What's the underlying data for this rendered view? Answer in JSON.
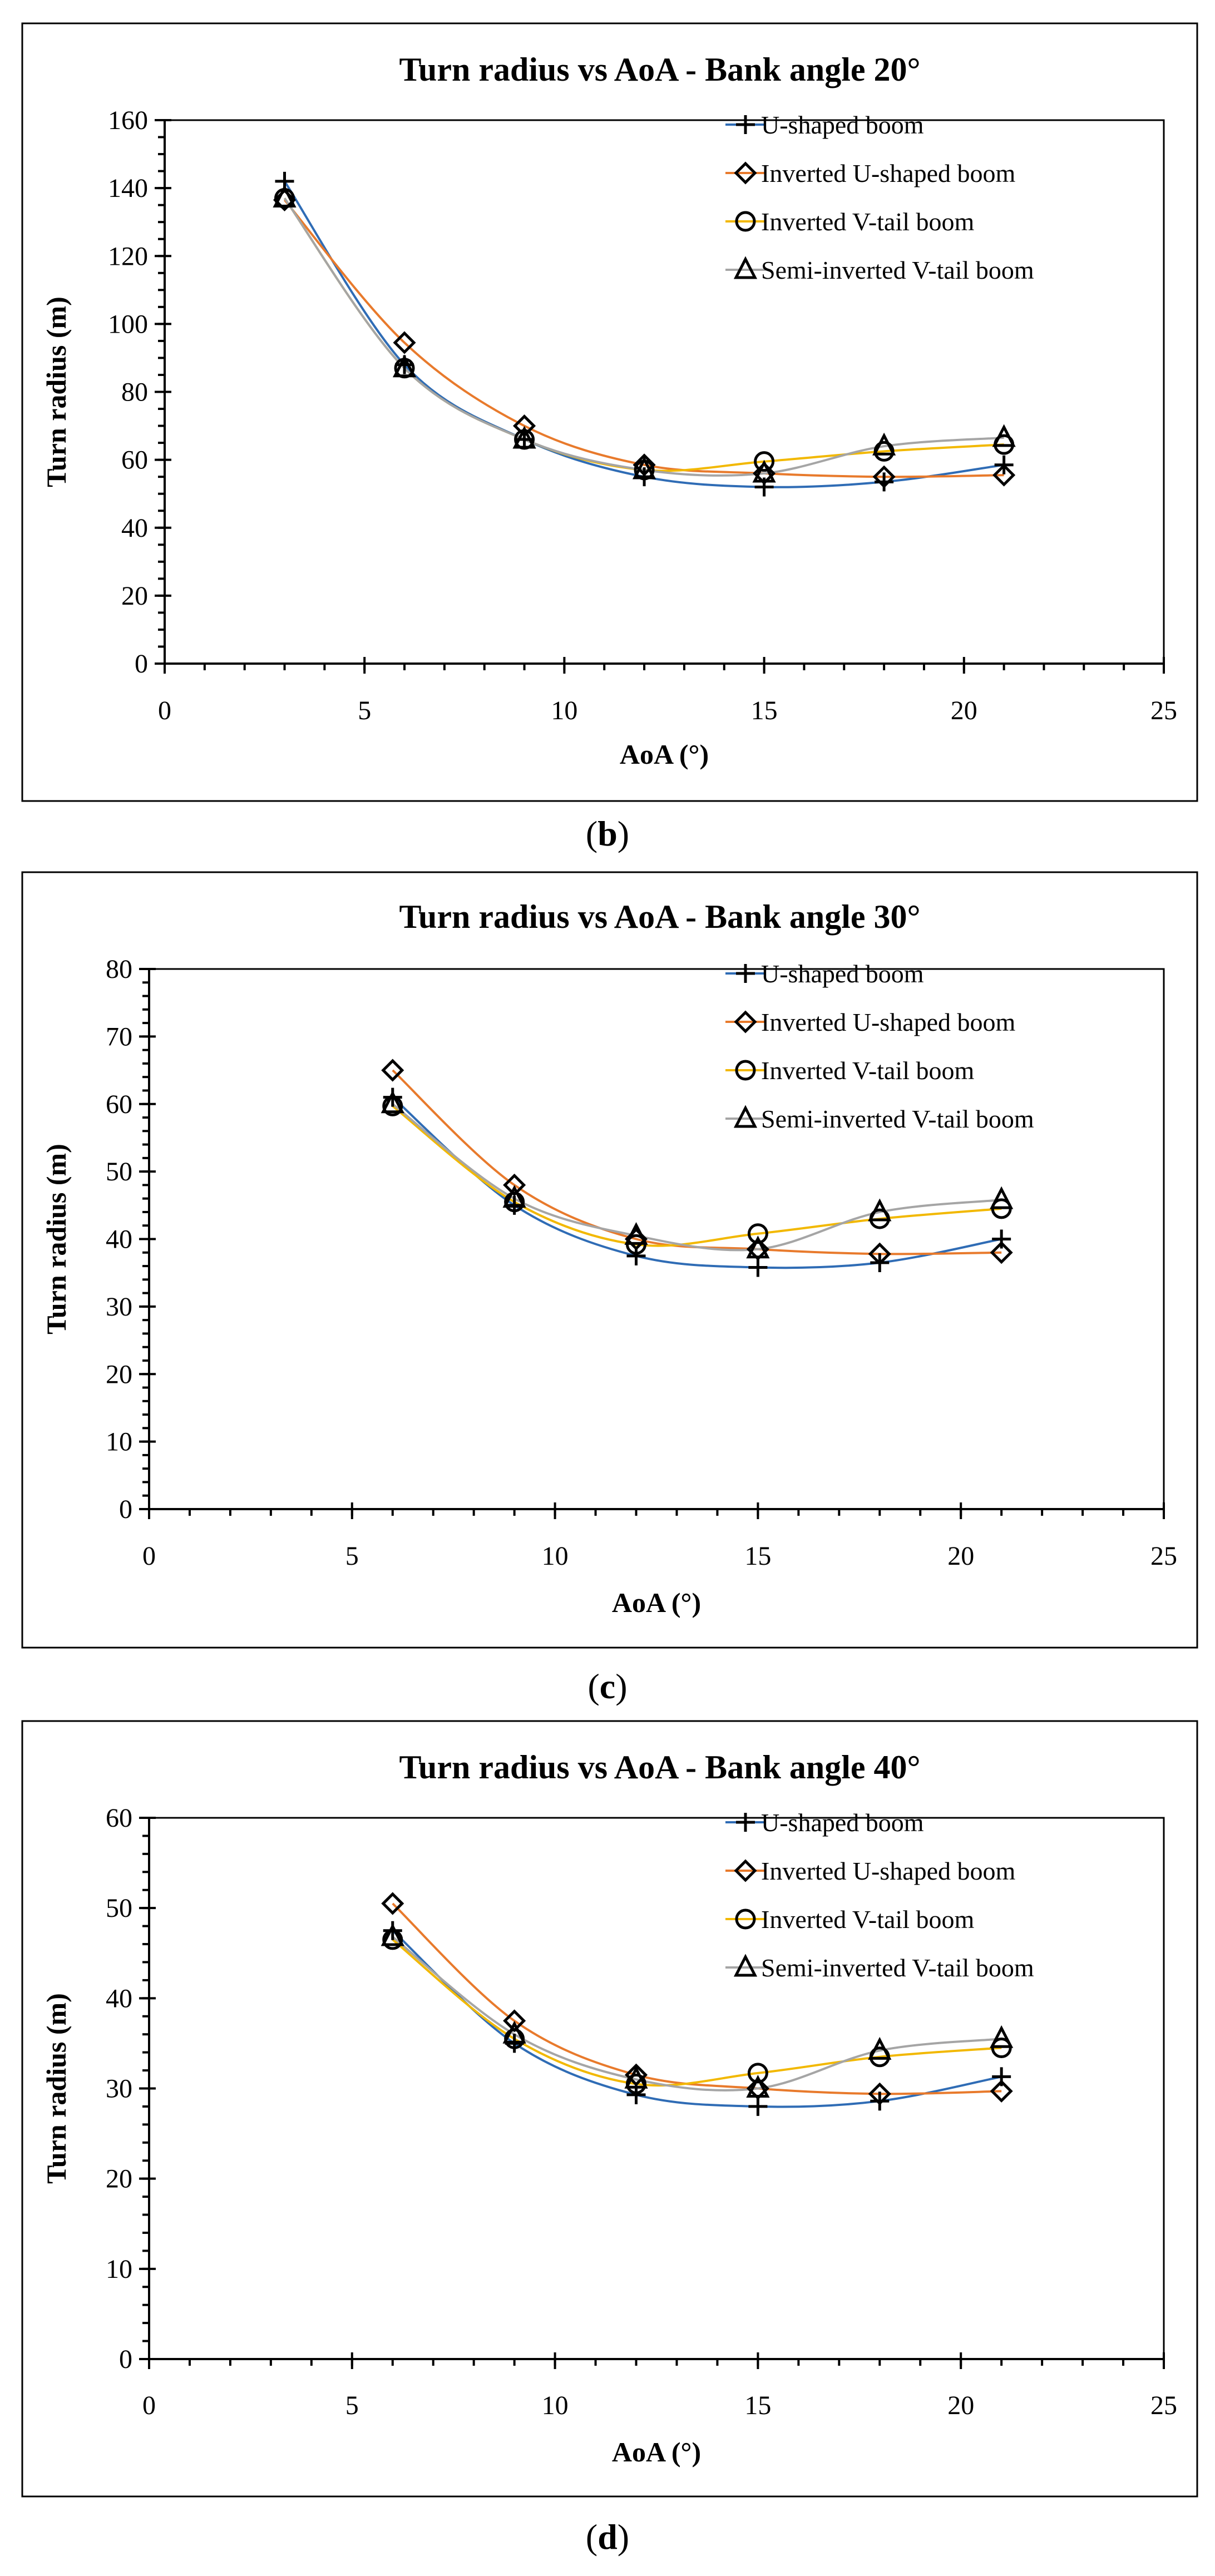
{
  "chart_data": [
    {
      "type": "line",
      "panel_label": "b",
      "title": "Turn radius vs AoA - Bank angle 20°",
      "xlabel": "AoA (°)",
      "ylabel": "Turn radius (m)",
      "xlim": [
        0,
        25
      ],
      "ylim": [
        0,
        160
      ],
      "x_ticks": [
        0,
        5,
        10,
        15,
        20,
        25
      ],
      "y_ticks": [
        0,
        20,
        40,
        60,
        80,
        100,
        120,
        140,
        160
      ],
      "x_minor_step": 1,
      "y_minor_step": 5,
      "legend": "top-right",
      "series": [
        {
          "name": "U-shaped boom",
          "color": "#2f6cb5",
          "marker": "plus",
          "x": [
            3,
            6,
            9,
            12,
            15,
            18,
            21
          ],
          "y": [
            142,
            88,
            66,
            55,
            52,
            53.5,
            58.5
          ]
        },
        {
          "name": "Inverted U-shaped boom",
          "color": "#e87a2c",
          "marker": "diamond",
          "x": [
            3,
            6,
            9,
            12,
            15,
            18,
            21
          ],
          "y": [
            136.5,
            94.5,
            70,
            58.5,
            56,
            55,
            55.5
          ]
        },
        {
          "name": "Inverted V-tail boom",
          "color": "#f2b800",
          "marker": "circle",
          "x": [
            3,
            6,
            9,
            12,
            15,
            18,
            21
          ],
          "y": [
            137,
            87,
            66,
            57,
            59.5,
            62.5,
            64.5
          ]
        },
        {
          "name": "Semi-inverted V-tail boom",
          "color": "#a5a5a5",
          "marker": "triangle",
          "x": [
            3,
            6,
            9,
            12,
            15,
            18,
            21
          ],
          "y": [
            137,
            87,
            66,
            57,
            56,
            64,
            66.5
          ]
        }
      ]
    },
    {
      "type": "line",
      "panel_label": "c",
      "title": "Turn radius vs AoA - Bank angle 30°",
      "xlabel": "AoA (°)",
      "ylabel": "Turn radius (m)",
      "xlim": [
        0,
        25
      ],
      "ylim": [
        0,
        80
      ],
      "x_ticks": [
        0,
        5,
        10,
        15,
        20,
        25
      ],
      "y_ticks": [
        0,
        10,
        20,
        30,
        40,
        50,
        60,
        70,
        80
      ],
      "x_minor_step": 1,
      "y_minor_step": 2,
      "legend": "top-right",
      "series": [
        {
          "name": "U-shaped boom",
          "color": "#2f6cb5",
          "marker": "plus",
          "x": [
            6,
            9,
            12,
            15,
            18,
            21
          ],
          "y": [
            61,
            45,
            37.5,
            35.8,
            36.5,
            40
          ]
        },
        {
          "name": "Inverted U-shaped boom",
          "color": "#e87a2c",
          "marker": "diamond",
          "x": [
            6,
            9,
            12,
            15,
            18,
            21
          ],
          "y": [
            65,
            48,
            40,
            38.5,
            37.8,
            38
          ]
        },
        {
          "name": "Inverted V-tail boom",
          "color": "#f2b800",
          "marker": "circle",
          "x": [
            6,
            9,
            12,
            15,
            18,
            21
          ],
          "y": [
            59.7,
            45.5,
            39.2,
            40.8,
            43,
            44.5
          ]
        },
        {
          "name": "Semi-inverted V-tail boom",
          "color": "#a5a5a5",
          "marker": "triangle",
          "x": [
            6,
            9,
            12,
            15,
            18,
            21
          ],
          "y": [
            60,
            46,
            40.5,
            38.5,
            44,
            45.8
          ]
        }
      ]
    },
    {
      "type": "line",
      "panel_label": "d",
      "title": "Turn radius vs AoA - Bank angle 40°",
      "xlabel": "AoA (°)",
      "ylabel": "Turn radius (m)",
      "xlim": [
        0,
        25
      ],
      "ylim": [
        0,
        60
      ],
      "x_ticks": [
        0,
        5,
        10,
        15,
        20,
        25
      ],
      "y_ticks": [
        0,
        10,
        20,
        30,
        40,
        50,
        60
      ],
      "x_minor_step": 1,
      "y_minor_step": 2,
      "legend": "top-right",
      "series": [
        {
          "name": "U-shaped boom",
          "color": "#2f6cb5",
          "marker": "plus",
          "x": [
            6,
            9,
            12,
            15,
            18,
            21
          ],
          "y": [
            47.5,
            35,
            29.3,
            28,
            28.6,
            31.3
          ]
        },
        {
          "name": "Inverted U-shaped boom",
          "color": "#e87a2c",
          "marker": "diamond",
          "x": [
            6,
            9,
            12,
            15,
            18,
            21
          ],
          "y": [
            50.5,
            37.5,
            31.5,
            30,
            29.4,
            29.7
          ]
        },
        {
          "name": "Inverted V-tail boom",
          "color": "#f2b800",
          "marker": "circle",
          "x": [
            6,
            9,
            12,
            15,
            18,
            21
          ],
          "y": [
            46.5,
            35.5,
            30.5,
            31.7,
            33.5,
            34.5
          ]
        },
        {
          "name": "Semi-inverted V-tail boom",
          "color": "#a5a5a5",
          "marker": "triangle",
          "x": [
            6,
            9,
            12,
            15,
            18,
            21
          ],
          "y": [
            46.8,
            36,
            31,
            30,
            34.2,
            35.5
          ]
        }
      ]
    }
  ]
}
